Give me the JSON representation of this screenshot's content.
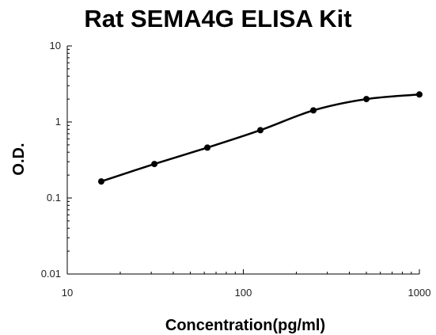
{
  "chart_data": {
    "type": "line",
    "title": "Rat SEMA4G ELISA Kit",
    "xlabel": "Concentration(pg/ml)",
    "ylabel": "O.D.",
    "xscale": "log",
    "yscale": "log",
    "xlim": [
      10,
      1000
    ],
    "ylim": [
      0.01,
      10
    ],
    "x_ticks": [
      "10",
      "100",
      "1000"
    ],
    "y_ticks": [
      "0.01",
      "0.1",
      "1",
      "10"
    ],
    "grid": false,
    "legend": "none",
    "series": [
      {
        "x": [
          15.6,
          31.25,
          62.5,
          125,
          250,
          500,
          1000
        ],
        "y": [
          0.165,
          0.28,
          0.46,
          0.78,
          1.42,
          2.0,
          2.3
        ]
      }
    ],
    "colors": {
      "line": "#000000",
      "marker": "#000000",
      "axis": "#000000"
    }
  }
}
